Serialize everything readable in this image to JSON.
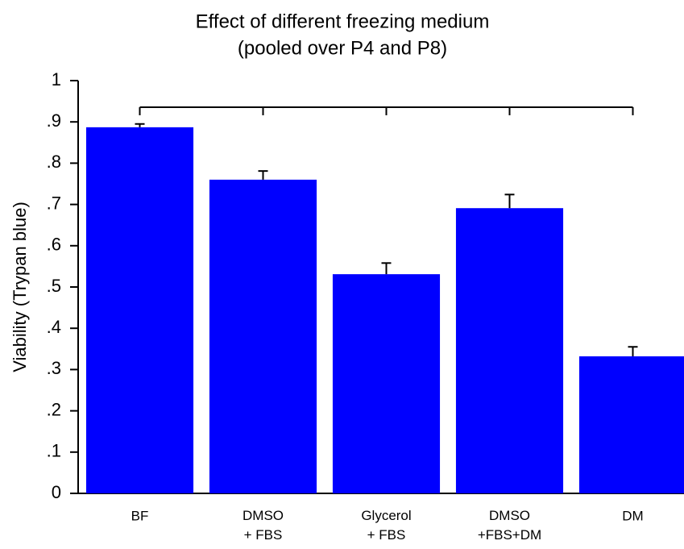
{
  "chart_data": {
    "type": "bar",
    "title": "Effect of different freezing medium",
    "subtitle": "(pooled over P4 and P8)",
    "y_label": "Viability  (Trypan blue)",
    "categories": [
      "BF",
      "DMSO\n+ FBS",
      "Glycerol\n+ FBS",
      "DMSO\n+FBS+DM",
      "DM"
    ],
    "values": [
      0.887,
      0.76,
      0.531,
      0.691,
      0.332
    ],
    "errors": [
      0.008,
      0.021,
      0.027,
      0.033,
      0.023
    ],
    "color": "#0000ff",
    "ylim": [
      0,
      1
    ],
    "yticks": [
      0,
      {
        "value": 0.1,
        "label": ".1"
      },
      {
        "value": 0.2,
        "label": ".2"
      },
      {
        "value": 0.3,
        "label": ".3"
      },
      {
        "value": 0.4,
        "label": ".4"
      },
      {
        "value": 0.5,
        "label": ".5"
      },
      {
        "value": 0.6,
        "label": ".6"
      },
      {
        "value": 0.7,
        "label": ".7"
      },
      {
        "value": 0.8,
        "label": ".8"
      },
      {
        "value": 0.9,
        "label": ".9"
      },
      1
    ],
    "grid": false
  }
}
